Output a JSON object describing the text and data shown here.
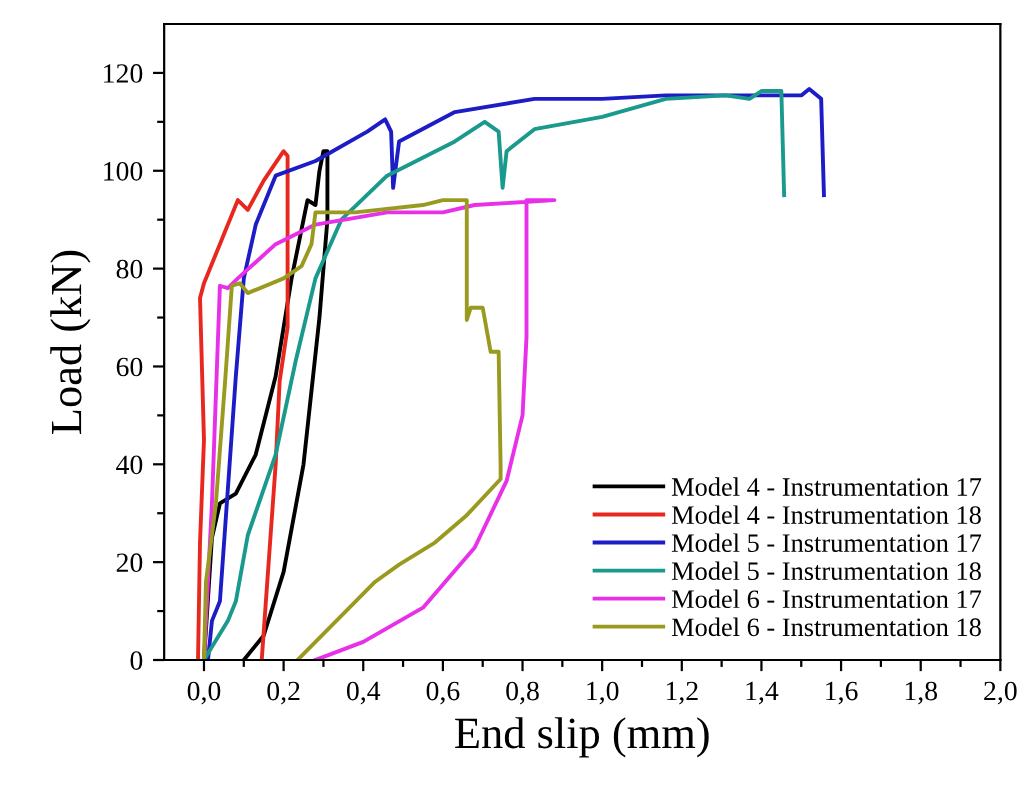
{
  "chart_data": {
    "type": "line",
    "xlabel": "End slip (mm)",
    "ylabel": "Load (kN)",
    "xlim": [
      -0.1,
      2.0
    ],
    "ylim": [
      0,
      130
    ],
    "xticks": [
      {
        "value": 0.0,
        "label": "0,0"
      },
      {
        "value": 0.1,
        "label": null
      },
      {
        "value": 0.2,
        "label": "0,2"
      },
      {
        "value": 0.3,
        "label": null
      },
      {
        "value": 0.4,
        "label": "0,4"
      },
      {
        "value": 0.5,
        "label": null
      },
      {
        "value": 0.6,
        "label": "0,6"
      },
      {
        "value": 0.7,
        "label": null
      },
      {
        "value": 0.8,
        "label": "0,8"
      },
      {
        "value": 0.9,
        "label": null
      },
      {
        "value": 1.0,
        "label": "1,0"
      },
      {
        "value": 1.1,
        "label": null
      },
      {
        "value": 1.2,
        "label": "1,2"
      },
      {
        "value": 1.3,
        "label": null
      },
      {
        "value": 1.4,
        "label": "1,4"
      },
      {
        "value": 1.5,
        "label": null
      },
      {
        "value": 1.6,
        "label": "1,6"
      },
      {
        "value": 1.7,
        "label": null
      },
      {
        "value": 1.8,
        "label": "1,8"
      },
      {
        "value": 1.9,
        "label": null
      },
      {
        "value": 2.0,
        "label": "2,0"
      }
    ],
    "yticks": [
      0,
      {
        "value": 10,
        "label": null
      },
      20,
      {
        "value": 30,
        "label": null
      },
      40,
      {
        "value": 50,
        "label": null
      },
      60,
      {
        "value": 70,
        "label": null
      },
      80,
      {
        "value": 90,
        "label": null
      },
      100,
      {
        "value": 110,
        "label": null
      },
      120
    ],
    "grid": false,
    "legend": "bottom right",
    "line_style": "solid",
    "marker": "none",
    "series": [
      {
        "name": "Model 4 - Instrumentation 17",
        "color": "#000000",
        "x": [
          0.0,
          0.02,
          0.04,
          0.08,
          0.13,
          0.18,
          0.22,
          0.25,
          0.26,
          0.28,
          0.29,
          0.3,
          0.31,
          0.31,
          0.29,
          0.25,
          0.2,
          0.15,
          0.1
        ],
        "values": [
          0,
          25,
          32,
          34,
          42,
          58,
          78,
          90,
          94,
          93,
          100,
          104,
          104,
          90,
          70,
          40,
          18,
          5,
          0
        ]
      },
      {
        "name": "Model 4 - Instrumentation 18",
        "color": "#e8281e",
        "x": [
          -0.015,
          -0.01,
          0.0,
          -0.01,
          0.0,
          0.045,
          0.085,
          0.11,
          0.15,
          0.2,
          0.21,
          0.21,
          0.19,
          0.18,
          0.145
        ],
        "values": [
          0,
          24,
          45,
          74,
          77,
          86,
          94,
          92,
          98,
          104,
          103,
          68,
          57,
          40,
          0
        ]
      },
      {
        "name": "Model 5 - Instrumentation 17",
        "color": "#1d1dc8",
        "x": [
          0.01,
          0.02,
          0.04,
          0.06,
          0.08,
          0.1,
          0.13,
          0.18,
          0.28,
          0.41,
          0.455,
          0.47,
          0.475,
          0.49,
          0.63,
          0.83,
          1.0,
          1.16,
          1.5,
          1.52,
          1.55,
          1.557
        ],
        "values": [
          0,
          8,
          12,
          35,
          58,
          78,
          89,
          99,
          102,
          108,
          110.5,
          108,
          96.5,
          106,
          112,
          114.7,
          114.7,
          115.4,
          115.4,
          116.7,
          114.7,
          95
        ]
      },
      {
        "name": "Model 5 - Instrumentation 18",
        "color": "#1a9a8c",
        "x": [
          0.0,
          0.06,
          0.08,
          0.11,
          0.18,
          0.23,
          0.28,
          0.345,
          0.46,
          0.63,
          0.705,
          0.74,
          0.75,
          0.76,
          0.83,
          1.0,
          1.16,
          1.31,
          1.37,
          1.4,
          1.45,
          1.457
        ],
        "values": [
          0,
          8,
          12,
          25.5,
          42,
          61,
          78,
          90,
          99,
          106,
          110,
          108,
          96.5,
          104,
          108.5,
          111,
          114.7,
          115.4,
          114.7,
          116.3,
          116.3,
          95
        ]
      },
      {
        "name": "Model 6 - Instrumentation 17",
        "color": "#e830e8",
        "x": [
          0.0,
          0.01,
          0.02,
          0.04,
          0.06,
          0.085,
          0.18,
          0.28,
          0.46,
          0.6,
          0.68,
          0.88,
          0.81,
          0.81,
          0.8,
          0.76,
          0.68,
          0.55,
          0.4,
          0.28
        ],
        "values": [
          0,
          16,
          32,
          76.5,
          76,
          78,
          85,
          89,
          91.5,
          91.5,
          93,
          94,
          94,
          66,
          50,
          36.6,
          23,
          10.7,
          3.7,
          0
        ]
      },
      {
        "name": "Model 6 - Instrumentation 18",
        "color": "#9a9a20",
        "x": [
          0.0,
          0.005,
          0.03,
          0.054,
          0.07,
          0.09,
          0.11,
          0.2,
          0.245,
          0.27,
          0.28,
          0.38,
          0.55,
          0.6,
          0.66,
          0.66,
          0.67,
          0.7,
          0.72,
          0.74,
          0.745,
          0.745,
          0.66,
          0.58,
          0.49,
          0.43,
          0.235
        ],
        "values": [
          0,
          16,
          32,
          58,
          76.5,
          77,
          75,
          78,
          80.5,
          85,
          91.5,
          91.5,
          93,
          94,
          94,
          69.5,
          72,
          72,
          63,
          63,
          39.5,
          37,
          29.6,
          24,
          19.5,
          16,
          0
        ]
      }
    ]
  }
}
